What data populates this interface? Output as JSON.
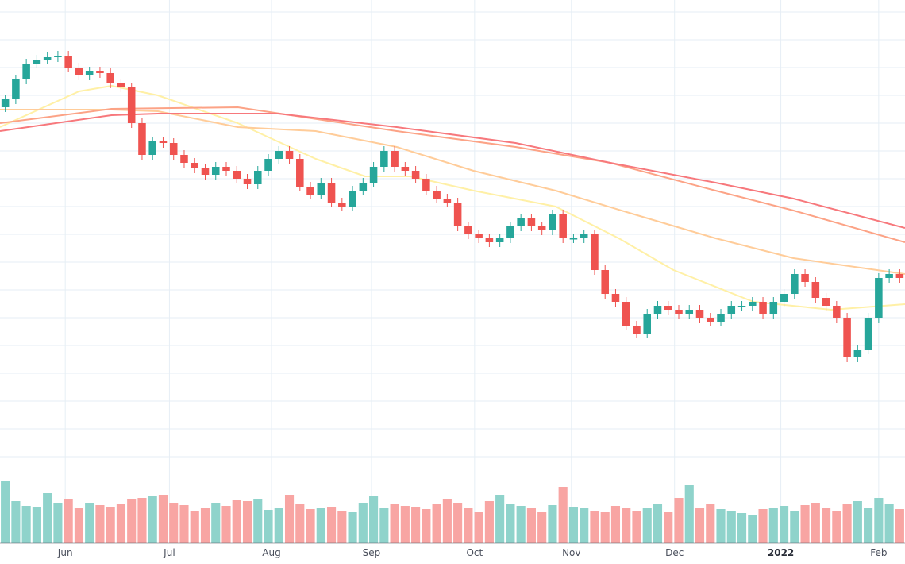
{
  "chart_data": {
    "type": "candlestick",
    "title": "",
    "xlabel": "",
    "ylabel": "",
    "ylim": [
      0,
      120
    ],
    "grid": true,
    "ygrid_levels": [
      117,
      110,
      103,
      96,
      89,
      82,
      75,
      68,
      61,
      54,
      47,
      40,
      33,
      26,
      19,
      12,
      5
    ],
    "first_open": 93,
    "close": [
      95,
      100,
      104,
      105,
      105.6,
      106,
      103,
      101,
      102,
      101.6,
      99,
      98,
      89,
      81,
      84.4,
      84,
      81,
      79,
      77.6,
      76,
      78,
      77,
      75,
      73.6,
      77,
      80,
      82,
      80,
      73,
      71,
      74,
      69,
      68,
      72,
      74,
      78,
      82,
      78,
      77,
      75,
      72,
      70,
      69,
      63,
      61,
      60,
      59,
      60,
      63,
      65,
      63,
      62,
      66,
      60,
      60,
      61,
      52,
      46,
      44,
      38,
      36,
      41,
      43,
      42,
      41,
      42,
      40,
      39,
      41,
      43,
      43,
      44,
      41,
      44,
      46,
      51,
      49,
      45,
      43,
      40,
      30,
      32,
      40,
      50,
      51,
      50
    ],
    "volume": [
      78,
      52,
      46,
      45,
      62,
      50,
      55,
      44,
      50,
      47,
      45,
      48,
      55,
      56,
      58,
      60,
      50,
      47,
      40,
      44,
      50,
      46,
      53,
      52,
      55,
      41,
      44,
      60,
      48,
      42,
      44,
      45,
      40,
      39,
      50,
      58,
      44,
      48,
      46,
      45,
      42,
      49,
      55,
      50,
      44,
      38,
      52,
      60,
      49,
      46,
      44,
      38,
      47,
      70,
      45,
      44,
      40,
      38,
      46,
      44,
      40,
      44,
      48,
      38,
      56,
      72,
      44,
      48,
      42,
      40,
      37,
      35,
      42,
      44,
      46,
      40,
      47,
      50,
      44,
      40,
      48,
      52,
      44,
      56,
      48,
      42
    ],
    "x_ticks": [
      {
        "label": "Jun",
        "index": 5.7,
        "bold": false
      },
      {
        "label": "Jul",
        "index": 15.6,
        "bold": false
      },
      {
        "label": "Aug",
        "index": 25.3,
        "bold": false
      },
      {
        "label": "Sep",
        "index": 34.8,
        "bold": false
      },
      {
        "label": "Oct",
        "index": 44.6,
        "bold": false
      },
      {
        "label": "Nov",
        "index": 53.8,
        "bold": false
      },
      {
        "label": "Dec",
        "index": 63.6,
        "bold": false
      },
      {
        "label": "2022",
        "index": 73.7,
        "bold": true
      },
      {
        "label": "Feb",
        "index": 83,
        "bold": false
      }
    ],
    "moving_averages": [
      {
        "name": "ma-short",
        "color": "#fff0a6",
        "points": [
          [
            0,
            88
          ],
          [
            7.5,
            97
          ],
          [
            10.6,
            98.4
          ],
          [
            15,
            96
          ],
          [
            22.6,
            89
          ],
          [
            30,
            80
          ],
          [
            34.7,
            75.6
          ],
          [
            39,
            75.6
          ],
          [
            45,
            72
          ],
          [
            52.8,
            68
          ],
          [
            58.8,
            60
          ],
          [
            64,
            52
          ],
          [
            71.6,
            44
          ],
          [
            79,
            42
          ],
          [
            86,
            43.4
          ]
        ]
      },
      {
        "name": "ma-mid",
        "color": "#ffcc99",
        "points": [
          [
            0,
            92.4
          ],
          [
            10.6,
            92.4
          ],
          [
            15,
            92
          ],
          [
            22.6,
            88
          ],
          [
            30,
            87
          ],
          [
            37.7,
            83
          ],
          [
            45,
            77
          ],
          [
            52.8,
            72
          ],
          [
            60.3,
            66
          ],
          [
            68,
            60
          ],
          [
            75.4,
            55
          ],
          [
            86,
            51
          ]
        ]
      },
      {
        "name": "ma-long",
        "color": "#fca386",
        "points": [
          [
            0,
            89
          ],
          [
            10.6,
            92.6
          ],
          [
            22.6,
            93
          ],
          [
            37.7,
            87
          ],
          [
            49,
            83
          ],
          [
            58,
            79
          ],
          [
            68,
            72
          ],
          [
            75.4,
            67
          ],
          [
            86,
            59
          ]
        ]
      },
      {
        "name": "ma-longest",
        "color": "#f7787c",
        "points": [
          [
            0,
            87
          ],
          [
            10.6,
            91
          ],
          [
            15,
            91.4
          ],
          [
            26.4,
            91.4
          ],
          [
            37.7,
            88
          ],
          [
            49,
            84
          ],
          [
            58,
            79
          ],
          [
            68,
            74
          ],
          [
            75.4,
            70
          ],
          [
            86,
            62.6
          ]
        ]
      }
    ],
    "colors": {
      "up": "#26a69a",
      "down": "#ef5350",
      "up_volume": "#8fd3cb",
      "down_volume": "#f8a5a3",
      "grid": "#e6eef5",
      "axis": "#50535e"
    }
  }
}
